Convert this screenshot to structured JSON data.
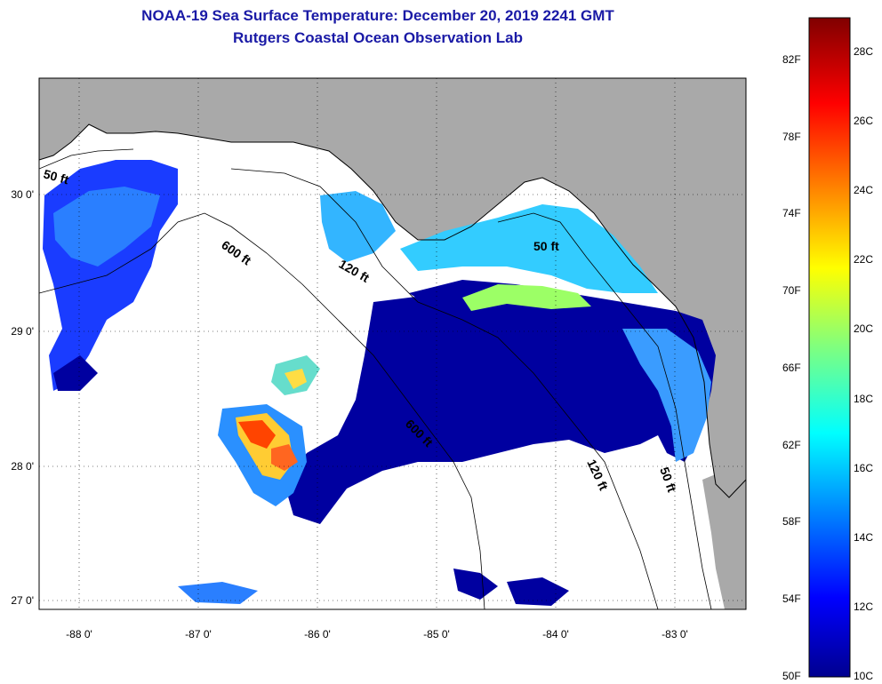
{
  "title": "NOAA-19 Sea Surface Temperature:  December 20, 2019 2241 GMT",
  "subtitle": "Rutgers Coastal Ocean Observation Lab",
  "axes": {
    "lon_ticks": [
      "-88 0'",
      "-87 0'",
      "-86 0'",
      "-85 0'",
      "-84 0'",
      "-83 0'"
    ],
    "lat_ticks": [
      "30 0'",
      "29 0'",
      "28 0'",
      "27 0'"
    ]
  },
  "contours": [
    "600 ft",
    "120 ft",
    "50 ft",
    "600 ft",
    "120 ft",
    "50 ft"
  ],
  "colorbar": {
    "fahrenheit": [
      "82F",
      "78F",
      "74F",
      "70F",
      "66F",
      "62F",
      "58F",
      "54F",
      "50F"
    ],
    "celsius": [
      "28C",
      "26C",
      "24C",
      "22C",
      "20C",
      "18C",
      "16C",
      "14C",
      "12C",
      "10C"
    ],
    "range_c": [
      10,
      29
    ],
    "colors": [
      "#00008f",
      "#0000ff",
      "#00ffff",
      "#7fff7f",
      "#ffff00",
      "#ff0000",
      "#800000"
    ]
  },
  "colors": {
    "title": "#1a1aa6",
    "land": "#a9a9a9",
    "no_data": "#ffffff"
  }
}
